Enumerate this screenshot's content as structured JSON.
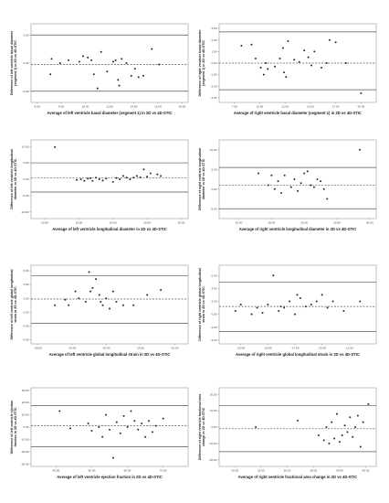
{
  "chart_data": [
    {
      "type": "scatter",
      "xlabel": "Average of left ventricle basal diameter (segment 1) in 2D vs 4D-STIC",
      "ylabel": "Difference of left ventricle basal diameter (segment 1) in 2D vs 4D-STIC",
      "xticks": [
        "6.00",
        "8.00",
        "10.00",
        "12.00",
        "14.00",
        "16.00",
        "18.00"
      ],
      "yticks": [
        "2.00",
        "0.00",
        "-2.00"
      ],
      "xlim": [
        5.5,
        18.5
      ],
      "ylim": [
        -2.8,
        2.8
      ],
      "ref_lines": {
        "upper": 2.0,
        "mean": -0.1,
        "lower": -2.0
      },
      "x": [
        7.1,
        7.2,
        7.9,
        8.6,
        9.5,
        9.8,
        10.2,
        10.5,
        10.7,
        11.0,
        11.3,
        11.8,
        12.3,
        12.5,
        12.7,
        12.8,
        13.0,
        13.4,
        13.8,
        14.1,
        14.4,
        14.8,
        15.5,
        16.1
      ],
      "y": [
        -0.8,
        0.3,
        0.0,
        0.2,
        0.1,
        0.5,
        0.4,
        0.2,
        -0.8,
        -1.8,
        0.8,
        -0.6,
        0.1,
        0.2,
        -1.2,
        -1.6,
        0.3,
        0.0,
        -0.9,
        -0.4,
        -1.0,
        -0.9,
        1.0,
        -0.1
      ]
    },
    {
      "type": "scatter",
      "xlabel": "Average of right ventricle basal diameter (segment 1) in 2D vs 4D-STIC",
      "ylabel": "Difference of right ventricle basal diameter (segment 1) in 2D vs 4D-STIC",
      "xticks": [
        "7.50",
        "10.00",
        "12.50",
        "15.00",
        "17.50",
        "20.00"
      ],
      "yticks": [
        "3.00",
        "2.00",
        "1.00",
        "0.00",
        "-1.00",
        "-2.00",
        "-3.00"
      ],
      "xlim": [
        6.0,
        21.5
      ],
      "ylim": [
        -3.4,
        3.4
      ],
      "ref_lines": {
        "upper": 2.7,
        "mean": 0.0,
        "lower": -2.3
      },
      "x": [
        8.2,
        9.2,
        9.6,
        10.1,
        10.4,
        10.6,
        10.8,
        11.5,
        12.0,
        12.3,
        12.4,
        12.6,
        12.8,
        13.4,
        13.9,
        14.4,
        14.8,
        15.1,
        15.4,
        16.1,
        16.6,
        16.9,
        17.5,
        18.5,
        20.0
      ],
      "y": [
        1.5,
        1.6,
        0.4,
        -0.4,
        -1.0,
        0.0,
        -0.5,
        -0.3,
        0.4,
        1.3,
        -0.8,
        -1.2,
        1.9,
        0.3,
        0.1,
        1.1,
        0.5,
        -0.2,
        1.0,
        -0.4,
        0.0,
        2.0,
        1.8,
        0.0,
        -2.6
      ]
    },
    {
      "type": "scatter",
      "xlabel": "Average of left ventricle longitudinal diameter in 2D vs 4D-STIC",
      "ylabel": "Difference of left ventricle longitudinal diameter in 2D vs 4D-STIC",
      "xticks": [
        "10.00",
        "15.00",
        "20.00",
        "25.00",
        "30.00"
      ],
      "yticks": [
        "10.00",
        "5.00",
        "0.00",
        "-5.00",
        "-10.00"
      ],
      "xlim": [
        8.0,
        31.0
      ],
      "ylim": [
        -12.0,
        12.0
      ],
      "ref_lines": {
        "upper": 5.0,
        "mean": 0.4,
        "lower": -3.9
      },
      "x": [
        11.5,
        14.7,
        15.3,
        15.8,
        16.3,
        16.7,
        17.0,
        17.5,
        18.0,
        18.5,
        19.0,
        20.0,
        20.5,
        21.0,
        21.5,
        22.0,
        22.5,
        23.0,
        23.5,
        24.0,
        24.5,
        25.0,
        25.5,
        26.5,
        27.0
      ],
      "y": [
        9.8,
        -0.2,
        0.0,
        -0.5,
        0.2,
        0.3,
        -0.5,
        0.5,
        0.0,
        -0.4,
        0.2,
        -0.8,
        0.4,
        0.0,
        1.0,
        0.5,
        0.0,
        0.5,
        1.0,
        0.6,
        3.0,
        0.8,
        1.8,
        1.5,
        1.0
      ]
    },
    {
      "type": "scatter",
      "xlabel": "Average of right ventricle longitudinal diameter in 2D vs 4D-STIC",
      "ylabel": "Difference of right ventricle longitudinal diameter in 2D vs 4D-STIC",
      "xticks": [
        "10.00",
        "15.00",
        "20.00",
        "25.00",
        "30.00"
      ],
      "yticks": [
        "10.00",
        "5.00",
        "0.00",
        "-5.00"
      ],
      "xlim": [
        7.0,
        31.0
      ],
      "ylim": [
        -7.5,
        12.5
      ],
      "ref_lines": {
        "upper": 5.5,
        "mean": 1.0,
        "lower": -5.0
      },
      "x": [
        13.0,
        14.5,
        15.0,
        15.5,
        16.0,
        16.5,
        17.0,
        18.0,
        18.5,
        19.0,
        19.5,
        20.0,
        20.5,
        21.0,
        21.5,
        22.0,
        22.5,
        23.0,
        23.5,
        28.5
      ],
      "y": [
        4.0,
        1.0,
        3.5,
        0.0,
        2.0,
        -1.0,
        3.5,
        0.5,
        2.5,
        -0.5,
        1.5,
        4.0,
        4.5,
        1.0,
        0.5,
        2.5,
        2.0,
        0.0,
        -2.5,
        10.0
      ]
    },
    {
      "type": "scatter",
      "xlabel": "Average of left ventricle global longitudinal strain in 2D vs 4D-STIC",
      "ylabel": "Difference of left ventricle global longitudinal strain in 2D vs 4D-STIC",
      "xticks": [
        "-30.00",
        "-25.00",
        "-20.00",
        "-15.00",
        "-10.00"
      ],
      "yticks": [
        "6.00",
        "4.00",
        "2.00",
        "0.00",
        "-2.00",
        "-4.00"
      ],
      "xlim": [
        -31.0,
        -8.0
      ],
      "ylim": [
        -4.6,
        6.8
      ],
      "ref_lines": {
        "upper": 5.3,
        "mean": 1.9,
        "lower": -1.6
      },
      "x": [
        -27.5,
        -26.0,
        -25.5,
        -24.5,
        -24.0,
        -23.0,
        -22.5,
        -22.3,
        -22.0,
        -21.5,
        -21.0,
        -20.8,
        -20.5,
        -20.0,
        -19.5,
        -19.0,
        -18.5,
        -17.5,
        -16.0,
        -14.0,
        -12.0
      ],
      "y": [
        1.0,
        1.8,
        1.0,
        3.0,
        2.0,
        1.5,
        5.8,
        3.0,
        3.5,
        4.8,
        2.5,
        1.5,
        1.0,
        2.0,
        0.5,
        3.0,
        1.5,
        1.0,
        1.0,
        2.5,
        3.2
      ]
    },
    {
      "type": "scatter",
      "xlabel": "Average of right ventricle global longitudinal strain in 2D vs 4D-STIC",
      "ylabel": "Difference of right ventricle global longitudinal strain in 2D vs 4D-STIC",
      "xticks": [
        "-22.50",
        "-20.00",
        "-17.50",
        "-15.00",
        "-12.50"
      ],
      "yticks": [
        "6.00",
        "4.00",
        "2.00",
        "0.00",
        "-2.00",
        "-4.00"
      ],
      "xlim": [
        -24.5,
        -10.0
      ],
      "ylim": [
        -4.6,
        7.6
      ],
      "ref_lines": {
        "upper": 5.0,
        "mean": 1.2,
        "lower": -2.7
      },
      "x": [
        -23.0,
        -22.5,
        -21.5,
        -21.0,
        -20.5,
        -20.0,
        -19.5,
        -19.0,
        -18.8,
        -18.5,
        -18.0,
        -17.5,
        -17.3,
        -17.0,
        -16.5,
        -16.0,
        -15.5,
        -15.0,
        -14.5,
        -14.0,
        -13.0,
        -11.5
      ],
      "y": [
        0.5,
        1.5,
        0.0,
        1.0,
        0.2,
        1.5,
        6.0,
        0.5,
        1.2,
        1.0,
        2.0,
        0.0,
        3.0,
        2.5,
        1.2,
        1.5,
        2.0,
        3.0,
        1.0,
        2.0,
        0.5,
        2.0
      ]
    },
    {
      "type": "scatter",
      "xlabel": "Average of left ventricle ejection fraction in 2D vs 4D-STIC",
      "ylabel": "Difference of left ventricle ejection fraction in 2D vs 4D-STIC",
      "xticks": [
        "40.00",
        "50.00",
        "60.00",
        "70.00"
      ],
      "yticks": [
        "30.00",
        "20.00",
        "10.00",
        "0.00",
        "-10.00",
        "-20.00",
        "-30.00"
      ],
      "xlim": [
        33.0,
        77.0
      ],
      "ylim": [
        -32.0,
        32.0
      ],
      "ref_lines": {
        "upper": 17.5,
        "mean": 1.0,
        "lower": -16.0
      },
      "x": [
        41.0,
        44.0,
        49.0,
        50.0,
        52.0,
        53.0,
        54.0,
        55.0,
        56.0,
        57.0,
        58.0,
        59.0,
        60.0,
        61.0,
        62.0,
        63.0,
        64.0,
        65.0,
        66.0,
        67.0,
        68.0,
        70.0
      ],
      "y": [
        13.0,
        -1.0,
        3.0,
        -3.0,
        0.0,
        -8.0,
        10.0,
        -2.0,
        -25.0,
        4.0,
        -5.0,
        9.0,
        0.0,
        13.0,
        5.0,
        -2.0,
        3.0,
        -8.0,
        5.0,
        -4.0,
        1.0,
        7.0
      ]
    },
    {
      "type": "scatter",
      "xlabel": "Average of right ventricle fractional area change in 2D vs 4D-STIC",
      "ylabel": "Difference of right ventricle fractional area change in 2D vs 4D-STIC",
      "xticks": [
        "20.00",
        "25.00",
        "30.00",
        "35.00",
        "40.00",
        "45.00"
      ],
      "yticks": [
        "20.00",
        "10.00",
        "0.00",
        "-10.00",
        "-20.00"
      ],
      "xlim": [
        17.0,
        47.0
      ],
      "ylim": [
        -24.0,
        24.0
      ],
      "ref_lines": {
        "upper": 13.0,
        "mean": -1.0,
        "lower": -15.0
      },
      "x": [
        24.0,
        32.0,
        36.0,
        37.0,
        37.5,
        38.0,
        38.5,
        39.0,
        39.5,
        40.0,
        40.5,
        41.0,
        41.5,
        42.0,
        42.5,
        43.0,
        43.5,
        44.0,
        44.5,
        45.5
      ],
      "y": [
        0.0,
        4.0,
        -5.0,
        -8.0,
        0.0,
        -10.0,
        3.0,
        -7.0,
        8.0,
        -9.0,
        -5.0,
        1.0,
        -3.0,
        6.0,
        -6.0,
        0.0,
        7.0,
        -12.0,
        3.0,
        14.0
      ]
    }
  ]
}
